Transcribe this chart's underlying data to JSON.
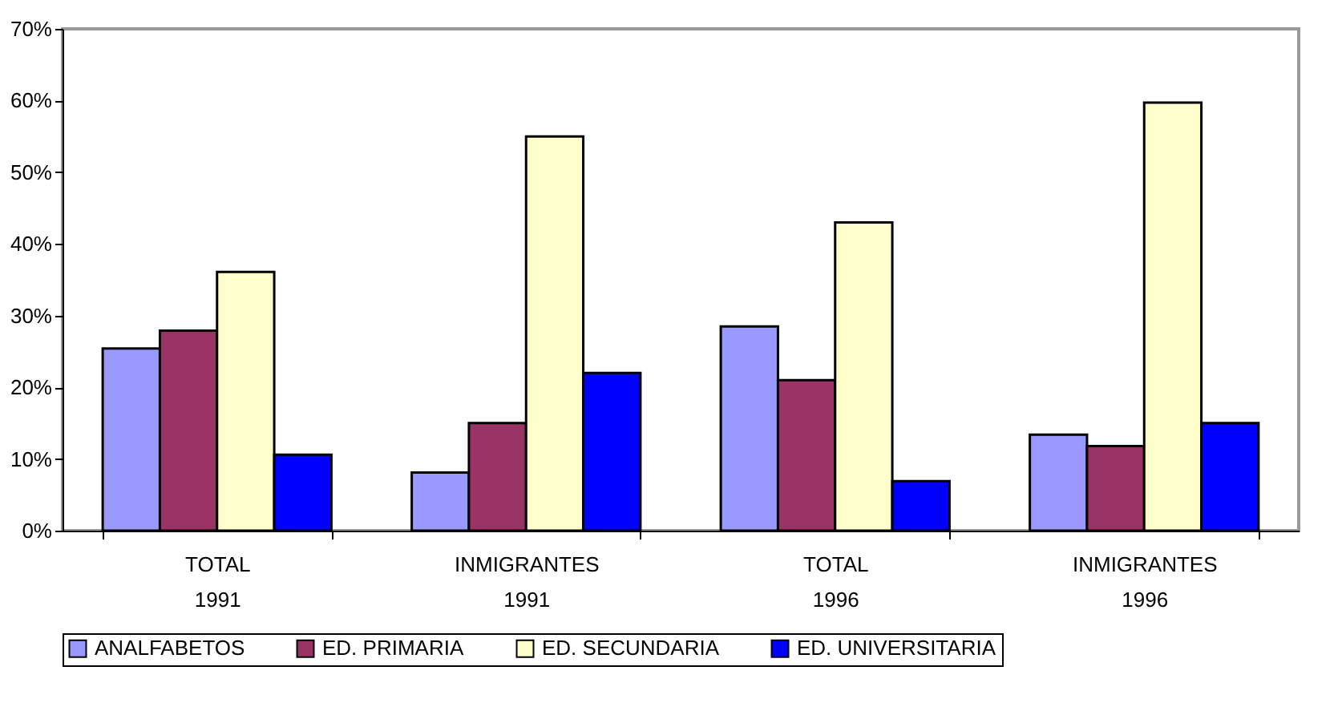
{
  "chart_data": {
    "type": "bar",
    "categories": [
      "TOTAL\n1991",
      "INMIGRANTES\n1991",
      "TOTAL\n1996",
      "INMIGRANTES\n1996"
    ],
    "series": [
      {
        "name": "ANALFABETOS",
        "color": "#9999ff",
        "values": [
          25.4,
          8.1,
          28.5,
          13.4
        ]
      },
      {
        "name": "ED. PRIMARIA",
        "color": "#993366",
        "values": [
          27.9,
          15.0,
          21.0,
          11.8
        ]
      },
      {
        "name": "ED. SECUNDARIA",
        "color": "#ffffcc",
        "values": [
          36.1,
          55.0,
          43.0,
          59.7
        ]
      },
      {
        "name": "ED. UNIVERSITARIA",
        "color": "#0000ff",
        "values": [
          10.6,
          22.0,
          6.9,
          15.0
        ]
      }
    ],
    "ylim": [
      0,
      70
    ],
    "yticks": [
      {
        "value": 0,
        "label": "0%"
      },
      {
        "value": 10,
        "label": "10%"
      },
      {
        "value": 20,
        "label": "20%"
      },
      {
        "value": 30,
        "label": "30%"
      },
      {
        "value": 40,
        "label": "40%"
      },
      {
        "value": 50,
        "label": "50%"
      },
      {
        "value": 60,
        "label": "60%"
      },
      {
        "value": 70,
        "label": "70%"
      }
    ],
    "grid": false,
    "legend": "bottom"
  }
}
